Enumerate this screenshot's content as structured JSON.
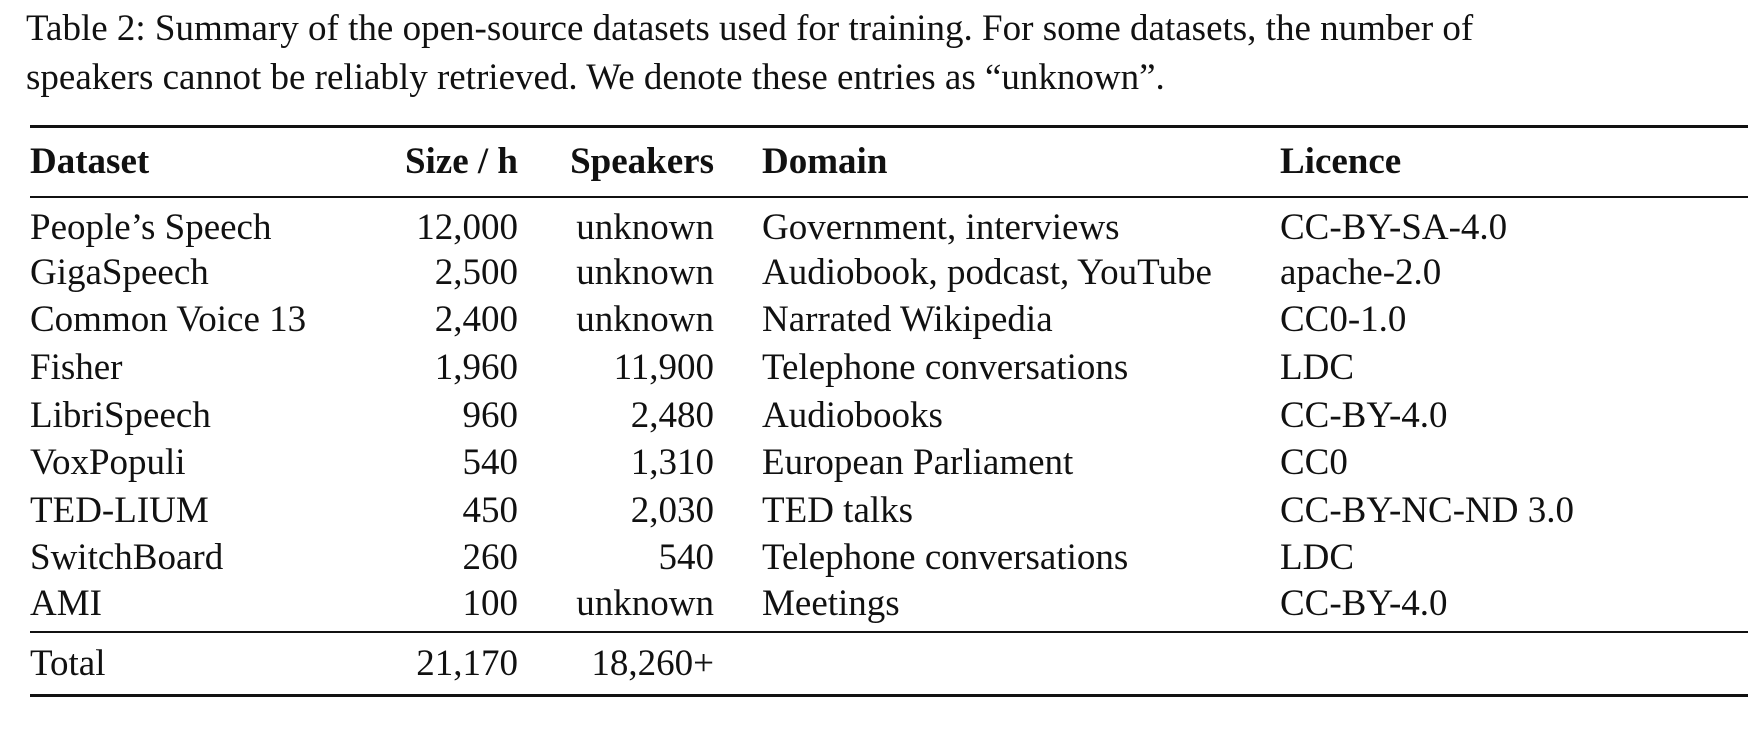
{
  "caption": {
    "line1": "Table 2: Summary of the open-source datasets used for training. For some datasets, the number of",
    "line2": "speakers cannot be reliably retrieved. We denote these entries as “unknown”."
  },
  "table": {
    "headers": {
      "dataset": "Dataset",
      "size": "Size / h",
      "speakers": "Speakers",
      "domain": "Domain",
      "licence": "Licence"
    },
    "rows": [
      {
        "dataset": "People’s Speech",
        "size": "12,000",
        "speakers": "unknown",
        "domain": "Government, interviews",
        "licence": "CC-BY-SA-4.0"
      },
      {
        "dataset": "GigaSpeech",
        "size": "2,500",
        "speakers": "unknown",
        "domain": "Audiobook, podcast, YouTube",
        "licence": "apache-2.0"
      },
      {
        "dataset": "Common Voice 13",
        "size": "2,400",
        "speakers": "unknown",
        "domain": "Narrated Wikipedia",
        "licence": "CC0-1.0"
      },
      {
        "dataset": "Fisher",
        "size": "1,960",
        "speakers": "11,900",
        "domain": "Telephone conversations",
        "licence": "LDC"
      },
      {
        "dataset": "LibriSpeech",
        "size": "960",
        "speakers": "2,480",
        "domain": "Audiobooks",
        "licence": "CC-BY-4.0"
      },
      {
        "dataset": "VoxPopuli",
        "size": "540",
        "speakers": "1,310",
        "domain": "European Parliament",
        "licence": "CC0"
      },
      {
        "dataset": "TED-LIUM",
        "size": "450",
        "speakers": "2,030",
        "domain": "TED talks",
        "licence": "CC-BY-NC-ND 3.0"
      },
      {
        "dataset": "SwitchBoard",
        "size": "260",
        "speakers": "540",
        "domain": "Telephone conversations",
        "licence": "LDC"
      },
      {
        "dataset": "AMI",
        "size": "100",
        "speakers": "unknown",
        "domain": "Meetings",
        "licence": "CC-BY-4.0"
      }
    ],
    "total": {
      "label": "Total",
      "size": "21,170",
      "speakers": "18,260+"
    }
  }
}
